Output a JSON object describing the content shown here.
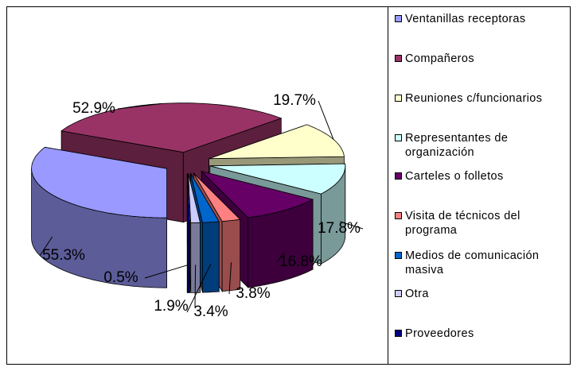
{
  "chart_data": {
    "type": "pie",
    "categories": [
      "Ventanillas receptoras",
      "Compañeros",
      "Reuniones c/funcionarios",
      "Representantes de organización",
      "Carteles o folletos",
      "Visita de técnicos del programa",
      "Medios de comunicación masiva",
      "Otra",
      "Proveedores"
    ],
    "values": [
      55.3,
      52.9,
      19.7,
      17.8,
      16.8,
      3.8,
      3.4,
      1.9,
      0.5
    ],
    "value_labels": [
      "55.3%",
      "52.9%",
      "19.7%",
      "17.8%",
      "16.8%",
      "3.8%",
      "3.4%",
      "1.9%",
      "0.5%"
    ],
    "colors": [
      "#9999ff",
      "#993366",
      "#ffffcc",
      "#ccffff",
      "#660066",
      "#ff8080",
      "#0066cc",
      "#ccccff",
      "#000080"
    ],
    "legend": "right"
  }
}
